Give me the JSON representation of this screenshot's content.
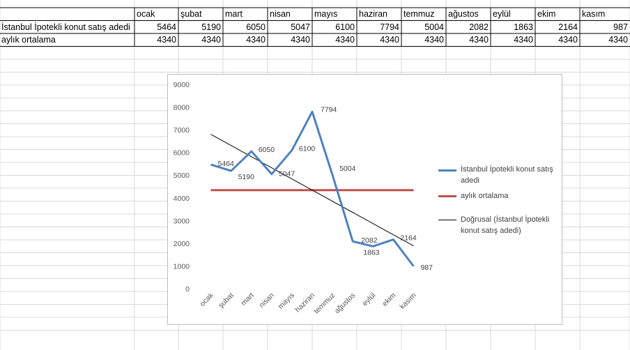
{
  "spreadsheet": {
    "months": [
      "ocak",
      "şubat",
      "mart",
      "nisan",
      "mayıs",
      "haziran",
      "temmuz",
      "ağustos",
      "eylül",
      "ekim",
      "kasım"
    ],
    "rows": [
      {
        "label": "İstanbul İpotekli konut satış adedi",
        "values": [
          "5464",
          "5190",
          "6050",
          "5047",
          "6100",
          "7794",
          "5004",
          "2082",
          "1863",
          "2164",
          "987"
        ]
      },
      {
        "label": "aylık ortalama",
        "values": [
          "4340",
          "4340",
          "4340",
          "4340",
          "4340",
          "4340",
          "4340",
          "4340",
          "4340",
          "4340",
          "4340"
        ]
      }
    ]
  },
  "chart_data": {
    "type": "line",
    "categories": [
      "ocak",
      "şubat",
      "mart",
      "nisan",
      "mayıs",
      "haziran",
      "temmuz",
      "ağustos",
      "eylül",
      "ekim",
      "kasım"
    ],
    "series": [
      {
        "name": "İstanbul İpotekli konut satış adedi",
        "values": [
          5464,
          5190,
          6050,
          5047,
          6100,
          7794,
          5004,
          2082,
          1863,
          2164,
          987
        ],
        "color": "#4f81bd",
        "data_labels": true
      },
      {
        "name": "aylık ortalama",
        "values": [
          4340,
          4340,
          4340,
          4340,
          4340,
          4340,
          4340,
          4340,
          4340,
          4340,
          4340
        ],
        "color": "#c0504d",
        "data_labels": false
      },
      {
        "name": "Doğrusal (İstanbul İpotekli konut satış adedi)",
        "trendline": "linear",
        "color": "#000000",
        "data_labels": false
      }
    ],
    "ylim": [
      0,
      9000
    ],
    "yticks": [
      "0",
      "1000",
      "2000",
      "3000",
      "4000",
      "5000",
      "6000",
      "7000",
      "8000",
      "9000"
    ],
    "legend_position": "right",
    "grid": false
  }
}
